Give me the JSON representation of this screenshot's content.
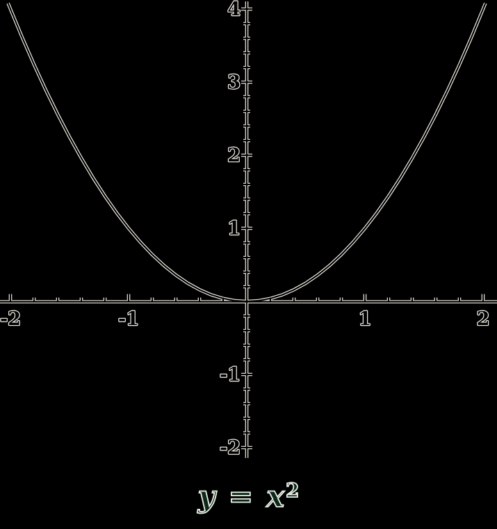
{
  "figure": {
    "background": "#000000",
    "line_outline_color": "#f4f1e8",
    "line_core_color": "#000000",
    "caption": {
      "base": "y = x",
      "exponent": "2",
      "outline_color": "#e9f1e7",
      "fill_color": "#0e2818"
    }
  },
  "chart_data": {
    "type": "line",
    "title": "y = x^2",
    "function": "y = x^2",
    "xlabel": "",
    "ylabel": "",
    "x_range": [
      -2,
      2
    ],
    "y_axis_range": [
      -2,
      4
    ],
    "x_major_ticks": [
      -2,
      -1,
      1,
      2
    ],
    "x_tick_labels": [
      "-2",
      "-1",
      "1",
      "2"
    ],
    "y_major_ticks": [
      -2,
      -1,
      1,
      2,
      3,
      4
    ],
    "y_tick_labels": [
      "-2",
      "-1",
      "1",
      "2",
      "3",
      "4"
    ],
    "minor_tick_step": 0.2,
    "grid": false,
    "legend": false,
    "points": [
      [
        -2.02,
        4.0804
      ],
      [
        -2,
        4
      ],
      [
        -1.9,
        3.61
      ],
      [
        -1.8,
        3.24
      ],
      [
        -1.7,
        2.89
      ],
      [
        -1.6,
        2.56
      ],
      [
        -1.5,
        2.25
      ],
      [
        -1.4,
        1.96
      ],
      [
        -1.3,
        1.69
      ],
      [
        -1.2,
        1.44
      ],
      [
        -1.1,
        1.21
      ],
      [
        -1,
        1
      ],
      [
        -0.9,
        0.81
      ],
      [
        -0.8,
        0.64
      ],
      [
        -0.7,
        0.49
      ],
      [
        -0.6,
        0.36
      ],
      [
        -0.5,
        0.25
      ],
      [
        -0.4,
        0.16
      ],
      [
        -0.3,
        0.09
      ],
      [
        -0.2,
        0.04
      ],
      [
        -0.1,
        0.01
      ],
      [
        0,
        0
      ],
      [
        0.1,
        0.01
      ],
      [
        0.2,
        0.04
      ],
      [
        0.3,
        0.09
      ],
      [
        0.4,
        0.16
      ],
      [
        0.5,
        0.25
      ],
      [
        0.6,
        0.36
      ],
      [
        0.7,
        0.49
      ],
      [
        0.8,
        0.64
      ],
      [
        0.9,
        0.81
      ],
      [
        1,
        1
      ],
      [
        1.1,
        1.21
      ],
      [
        1.2,
        1.44
      ],
      [
        1.3,
        1.69
      ],
      [
        1.4,
        1.96
      ],
      [
        1.5,
        2.25
      ],
      [
        1.6,
        2.56
      ],
      [
        1.7,
        2.89
      ],
      [
        1.8,
        3.24
      ],
      [
        1.9,
        3.61
      ],
      [
        2,
        4
      ],
      [
        2.02,
        4.0804
      ]
    ]
  }
}
